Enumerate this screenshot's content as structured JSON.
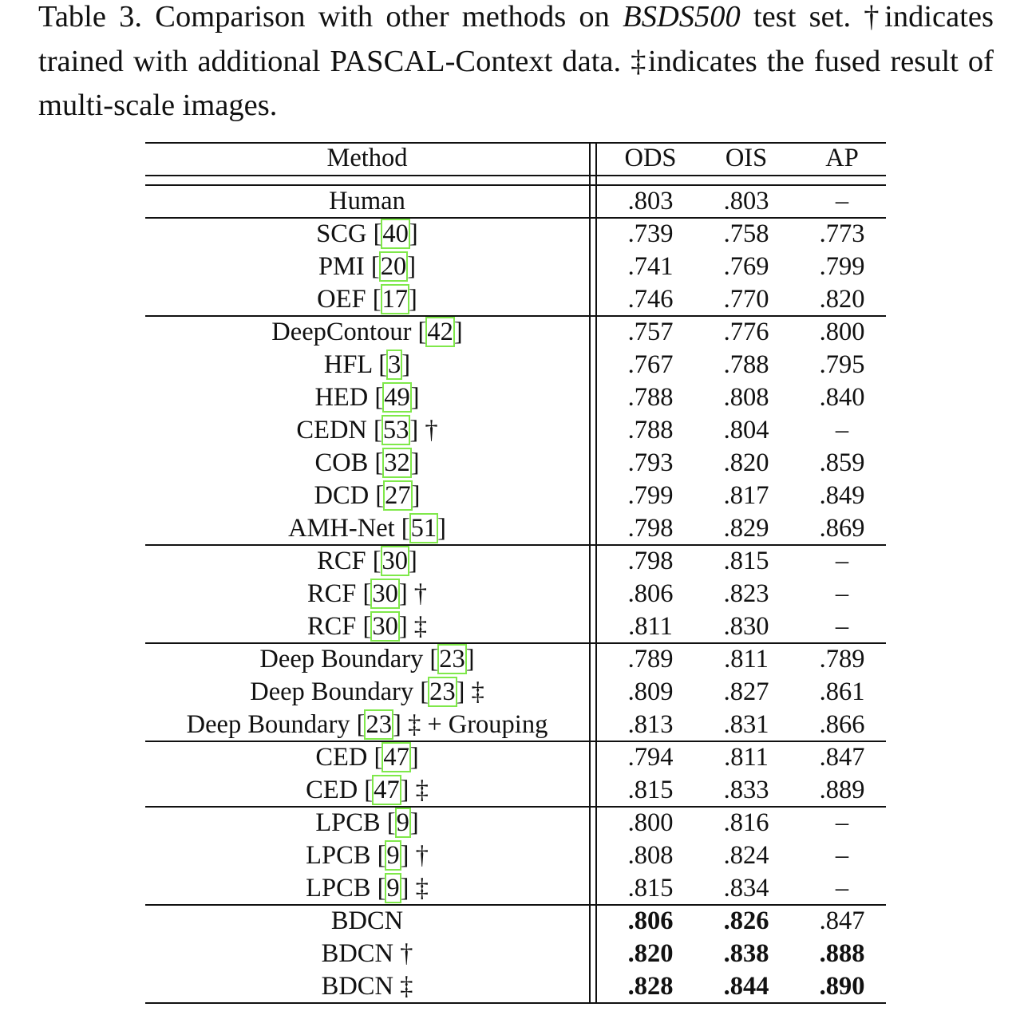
{
  "caption": {
    "part1": "Table 3. Comparison with other methods on ",
    "dataset": "BSDS500",
    "part2": " test set.  †indicates trained with additional PASCAL-Context data. ‡indicates the fused result of multi-scale images."
  },
  "header": {
    "method": "Method",
    "ods": "ODS",
    "ois": "OIS",
    "ap": "AP"
  },
  "cite_box_color": "#7fe84a",
  "groups": [
    [
      {
        "name": "Human",
        "cite": "",
        "suffix": "",
        "ods": ".803",
        "ois": ".803",
        "ap": "–"
      }
    ],
    [
      {
        "name": "SCG",
        "cite": "40",
        "suffix": "",
        "ods": ".739",
        "ois": ".758",
        "ap": ".773"
      },
      {
        "name": "PMI",
        "cite": "20",
        "suffix": "",
        "ods": ".741",
        "ois": ".769",
        "ap": ".799"
      },
      {
        "name": "OEF",
        "cite": "17",
        "suffix": "",
        "ods": ".746",
        "ois": ".770",
        "ap": ".820"
      }
    ],
    [
      {
        "name": "DeepContour",
        "cite": "42",
        "suffix": "",
        "ods": ".757",
        "ois": ".776",
        "ap": ".800"
      },
      {
        "name": "HFL",
        "cite": "3",
        "suffix": "",
        "ods": ".767",
        "ois": ".788",
        "ap": ".795"
      },
      {
        "name": "HED",
        "cite": "49",
        "suffix": "",
        "ods": ".788",
        "ois": ".808",
        "ap": ".840"
      },
      {
        "name": "CEDN",
        "cite": "53",
        "suffix": "†",
        "ods": ".788",
        "ois": ".804",
        "ap": "–"
      },
      {
        "name": "COB",
        "cite": "32",
        "suffix": "",
        "ods": ".793",
        "ois": ".820",
        "ap": ".859"
      },
      {
        "name": "DCD",
        "cite": "27",
        "suffix": "",
        "ods": ".799",
        "ois": ".817",
        "ap": ".849"
      },
      {
        "name": "AMH-Net",
        "cite": "51",
        "suffix": "",
        "ods": ".798",
        "ois": ".829",
        "ap": ".869"
      }
    ],
    [
      {
        "name": "RCF",
        "cite": "30",
        "suffix": "",
        "ods": ".798",
        "ois": ".815",
        "ap": "–"
      },
      {
        "name": "RCF",
        "cite": "30",
        "suffix": "†",
        "ods": ".806",
        "ois": ".823",
        "ap": "–"
      },
      {
        "name": "RCF",
        "cite": "30",
        "suffix": "‡",
        "ods": ".811",
        "ois": ".830",
        "ap": "–"
      }
    ],
    [
      {
        "name": "Deep Boundary",
        "cite": "23",
        "suffix": "",
        "ods": ".789",
        "ois": ".811",
        "ap": ".789"
      },
      {
        "name": "Deep Boundary",
        "cite": "23",
        "suffix": "‡",
        "ods": ".809",
        "ois": ".827",
        "ap": ".861"
      },
      {
        "name": "Deep Boundary",
        "cite": "23",
        "suffix": "‡ +  Grouping",
        "ods": ".813",
        "ois": ".831",
        "ap": ".866"
      }
    ],
    [
      {
        "name": "CED",
        "cite": "47",
        "suffix": "",
        "ods": ".794",
        "ois": ".811",
        "ap": ".847"
      },
      {
        "name": "CED",
        "cite": "47",
        "suffix": "‡",
        "ods": ".815",
        "ois": ".833",
        "ap": ".889"
      }
    ],
    [
      {
        "name": "LPCB",
        "cite": "9",
        "suffix": "",
        "ods": ".800",
        "ois": ".816",
        "ap": "–"
      },
      {
        "name": "LPCB",
        "cite": "9",
        "suffix": "†",
        "ods": ".808",
        "ois": ".824",
        "ap": "–"
      },
      {
        "name": "LPCB",
        "cite": "9",
        "suffix": "‡",
        "ods": ".815",
        "ois": ".834",
        "ap": "–"
      }
    ],
    [
      {
        "name": "BDCN",
        "cite": "",
        "suffix": "",
        "ods": ".806",
        "ois": ".826",
        "ap": ".847",
        "bold": [
          "ods",
          "ois"
        ]
      },
      {
        "name": "BDCN",
        "cite": "",
        "suffix": "†",
        "ods": ".820",
        "ois": ".838",
        "ap": ".888",
        "bold": [
          "ods",
          "ois",
          "ap"
        ]
      },
      {
        "name": "BDCN",
        "cite": "",
        "suffix": "‡",
        "ods": ".828",
        "ois": ".844",
        "ap": ".890",
        "bold": [
          "ods",
          "ois",
          "ap"
        ]
      }
    ]
  ]
}
